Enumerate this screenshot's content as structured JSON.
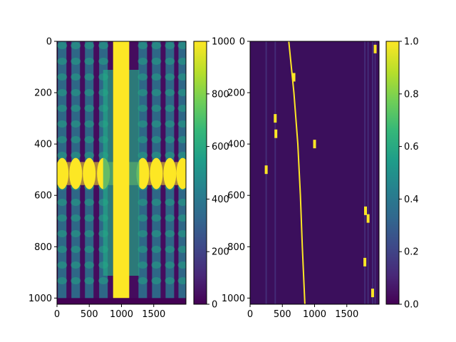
{
  "chart_data": [
    {
      "type": "heatmap",
      "name": "left-image",
      "x_range": [
        0,
        2000
      ],
      "y_range": [
        0,
        1024
      ],
      "y_inverted": true,
      "x_ticks": [
        "0",
        "500",
        "1000",
        "1500"
      ],
      "y_ticks": [
        "0",
        "200",
        "400",
        "600",
        "800",
        "1000"
      ],
      "features": {
        "band_columns": [
          80,
          290,
          500,
          720,
          1330,
          1540,
          1750,
          1950
        ],
        "center_band_x": [
          870,
          1120
        ],
        "horizontal_band_y": [
          470,
          560
        ],
        "background_value": 30,
        "band_value": 300,
        "saturated_value": 1000
      },
      "colorbar": {
        "range": [
          0,
          1000
        ],
        "ticks": [
          "0",
          "200",
          "400",
          "600",
          "800",
          "1000"
        ]
      }
    },
    {
      "type": "heatmap",
      "name": "right-image",
      "x_range": [
        0,
        2000
      ],
      "y_range": [
        0,
        1024
      ],
      "y_inverted": true,
      "x_ticks": [
        "0",
        "500",
        "1000",
        "1500"
      ],
      "y_ticks": [
        "0",
        "200",
        "400",
        "600",
        "800",
        "1000"
      ],
      "features": {
        "curve": [
          [
            600,
            0
          ],
          [
            680,
            200
          ],
          [
            740,
            400
          ],
          [
            780,
            600
          ],
          [
            810,
            800
          ],
          [
            850,
            1024
          ]
        ],
        "blobs": [
          [
            250,
            500
          ],
          [
            390,
            300
          ],
          [
            400,
            360
          ],
          [
            680,
            140
          ],
          [
            1000,
            400
          ],
          [
            1790,
            660
          ],
          [
            1830,
            690
          ],
          [
            1780,
            860
          ],
          [
            1940,
            30
          ],
          [
            1900,
            980
          ]
        ],
        "background_value": 0.0
      },
      "colorbar": {
        "range": [
          0.0,
          1.0
        ],
        "ticks": [
          "0.0",
          "0.2",
          "0.4",
          "0.6",
          "0.8",
          "1.0"
        ]
      }
    }
  ],
  "colors": {
    "viridis_dark": "#440154",
    "viridis_yellow": "#fde725",
    "band_mid": "#2a788e",
    "band_teal": "#22a884",
    "right_bg": "#3b0f5c",
    "right_streak": "#46327e",
    "cmap_stops": [
      "#440154",
      "#482878",
      "#3e4989",
      "#31688e",
      "#26828e",
      "#1f9e89",
      "#35b779",
      "#6ece58",
      "#b5de2b",
      "#fde725"
    ]
  }
}
